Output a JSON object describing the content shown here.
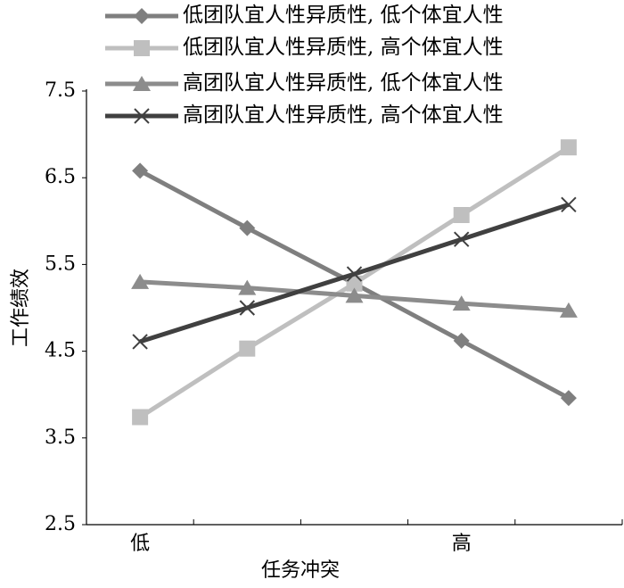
{
  "chart_data": {
    "type": "line",
    "x_label": "任务冲突",
    "y_label": "工作绩效",
    "categories": [
      "低",
      null,
      null,
      "高",
      null
    ],
    "series": [
      {
        "name": "低团队宜人性异质性, 低个体宜人性",
        "color": "#7f7f7f",
        "marker": "diamond",
        "values": [
          6.58,
          5.92,
          5.28,
          4.62,
          3.96
        ]
      },
      {
        "name": "低团队宜人性异质性, 高个体宜人性",
        "color": "#bfbfbf",
        "marker": "square",
        "values": [
          3.74,
          4.53,
          5.28,
          6.07,
          6.85
        ]
      },
      {
        "name": "高团队宜人性异质性, 低个体宜人性",
        "color": "#8c8c8c",
        "marker": "triangle",
        "values": [
          5.3,
          5.23,
          5.14,
          5.05,
          4.97
        ]
      },
      {
        "name": "高团队宜人性异质性, 高个体宜人性",
        "color": "#404040",
        "marker": "x",
        "values": [
          4.61,
          5.0,
          5.39,
          5.79,
          6.19
        ]
      }
    ],
    "ylim": [
      2.5,
      7.5
    ],
    "yticks": [
      2.5,
      3.5,
      4.5,
      5.5,
      6.5,
      7.5
    ],
    "grid": false
  }
}
